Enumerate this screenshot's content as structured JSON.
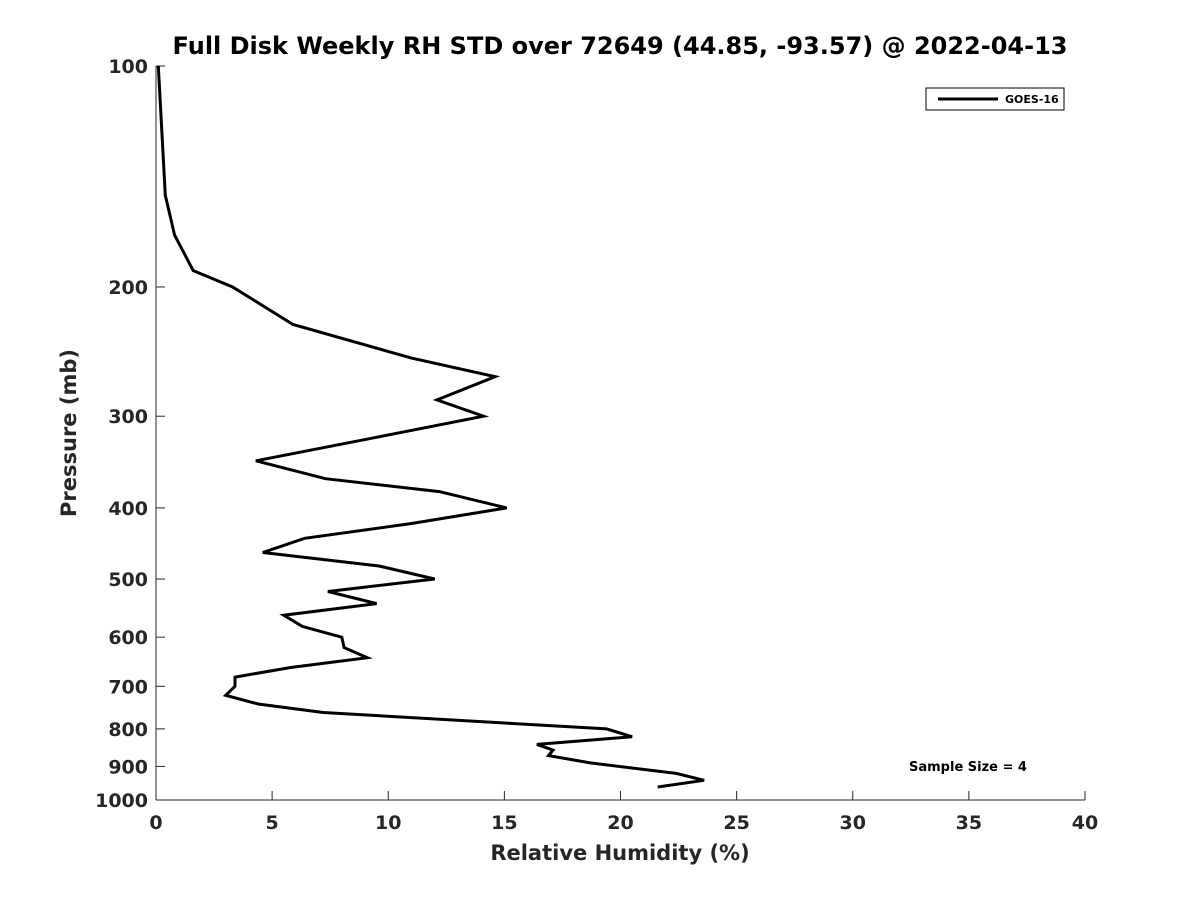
{
  "chart_data": {
    "type": "line",
    "title": "Full Disk Weekly RH STD over 72649 (44.85, -93.57) @ 2022-04-13",
    "xlabel": "Relative Humidity (%)",
    "ylabel": "Pressure (mb)",
    "xlim": [
      0,
      40
    ],
    "ylim": [
      100,
      1000
    ],
    "y_scale": "log",
    "y_inverted": true,
    "grid": false,
    "legend_position": "top-right",
    "x_ticks": [
      "0",
      "5",
      "10",
      "15",
      "20",
      "25",
      "30",
      "35",
      "40"
    ],
    "y_ticks": [
      "100",
      "200",
      "300",
      "400",
      "500",
      "600",
      "700",
      "800",
      "900",
      "1000"
    ],
    "annotation": "Sample Size = 4",
    "series": [
      {
        "name": "GOES-16",
        "color": "#000000",
        "points": [
          [
            0.1,
            100
          ],
          [
            0.4,
            150
          ],
          [
            0.8,
            170
          ],
          [
            1.6,
            190
          ],
          [
            3.3,
            200
          ],
          [
            5.9,
            225
          ],
          [
            11,
            250
          ],
          [
            14.6,
            265
          ],
          [
            12.1,
            285
          ],
          [
            14.1,
            300
          ],
          [
            9.6,
            320
          ],
          [
            4.3,
            345
          ],
          [
            7.3,
            365
          ],
          [
            12.2,
            380
          ],
          [
            15.1,
            400
          ],
          [
            11,
            420
          ],
          [
            6.4,
            440
          ],
          [
            4.6,
            460
          ],
          [
            9.6,
            480
          ],
          [
            12,
            500
          ],
          [
            7.4,
            520
          ],
          [
            9.5,
            540
          ],
          [
            5.5,
            560
          ],
          [
            6.3,
            580
          ],
          [
            8,
            600
          ],
          [
            8.1,
            620
          ],
          [
            9.1,
            640
          ],
          [
            5.8,
            660
          ],
          [
            3.4,
            680
          ],
          [
            3.4,
            700
          ],
          [
            3.0,
            720
          ],
          [
            4.4,
            740
          ],
          [
            7.2,
            760
          ],
          [
            19.4,
            800
          ],
          [
            20.5,
            820
          ],
          [
            16.4,
            840
          ],
          [
            17.1,
            855
          ],
          [
            16.9,
            870
          ],
          [
            18.7,
            890
          ],
          [
            22.4,
            920
          ],
          [
            23.6,
            940
          ],
          [
            21.6,
            960
          ]
        ]
      }
    ]
  }
}
